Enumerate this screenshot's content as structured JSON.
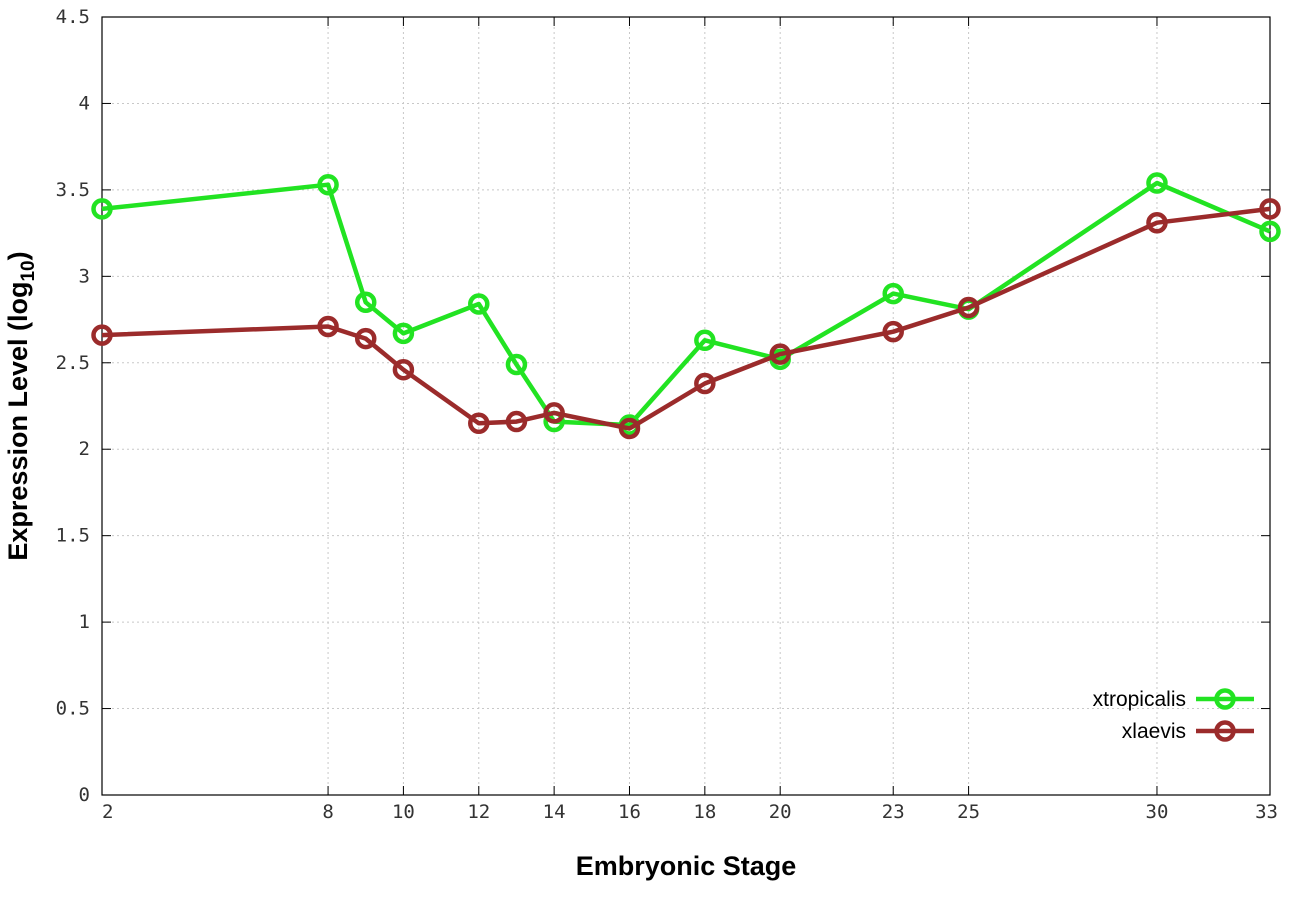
{
  "chart_data": {
    "type": "line",
    "xlabel": "Embryonic Stage",
    "ylabel": "Expression Level (log",
    "ylabel_subscript": "10",
    "ylabel_close": ")",
    "xlim": [
      2,
      33
    ],
    "ylim": [
      0,
      4.5
    ],
    "xticks": [
      2,
      8,
      10,
      12,
      14,
      16,
      18,
      20,
      23,
      25,
      30,
      33
    ],
    "yticks": [
      0,
      0.5,
      1,
      1.5,
      2,
      2.5,
      3,
      3.5,
      4,
      4.5
    ],
    "ytick_labels": [
      "0",
      "0.5",
      "1",
      "1.5",
      "2",
      "2.5",
      "3",
      "3.5",
      "4",
      "4.5"
    ],
    "grid": true,
    "legend_position": "bottom-right",
    "series": [
      {
        "name": "xtropicalis",
        "color": "#22e322",
        "x": [
          2,
          8,
          9,
          10,
          12,
          13,
          14,
          16,
          18,
          20,
          23,
          25,
          30,
          33
        ],
        "y": [
          3.39,
          3.53,
          2.85,
          2.67,
          2.84,
          2.49,
          2.16,
          2.14,
          2.63,
          2.52,
          2.9,
          2.81,
          3.54,
          3.26
        ]
      },
      {
        "name": "xlaevis",
        "color": "#9b2b2b",
        "x": [
          2,
          8,
          9,
          10,
          12,
          13,
          14,
          16,
          18,
          20,
          23,
          25,
          30,
          33
        ],
        "y": [
          2.66,
          2.71,
          2.64,
          2.46,
          2.15,
          2.16,
          2.21,
          2.12,
          2.38,
          2.55,
          2.68,
          2.82,
          3.31,
          3.39
        ]
      }
    ]
  }
}
